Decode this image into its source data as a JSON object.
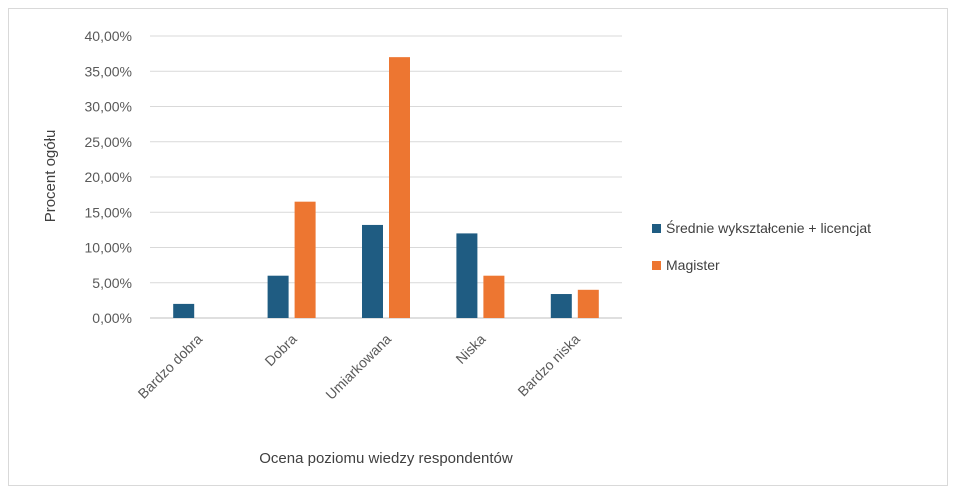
{
  "chart_data": {
    "type": "bar",
    "categories": [
      "Bardzo dobra",
      "Dobra",
      "Umiarkowana",
      "Niska",
      "Bardzo niska"
    ],
    "series": [
      {
        "name": "Średnie wykształcenie + licencjat",
        "values": [
          2.0,
          6.0,
          13.2,
          12.0,
          3.4
        ],
        "color": "#1f5c82"
      },
      {
        "name": "Magister",
        "values": [
          0.0,
          16.5,
          37.0,
          6.0,
          4.0
        ],
        "color": "#ed7631"
      }
    ],
    "ylim": [
      0,
      40
    ],
    "yticks": [
      0,
      5,
      10,
      15,
      20,
      25,
      30,
      35,
      40
    ],
    "ytick_labels": [
      "0,00%",
      "5,00%",
      "10,00%",
      "15,00%",
      "20,00%",
      "25,00%",
      "30,00%",
      "35,00%",
      "40,00%"
    ],
    "xlabel": "Ocena poziomu wiedzy respondentów",
    "ylabel": "Procent ogółu",
    "grid": true,
    "legend_position": "right"
  }
}
